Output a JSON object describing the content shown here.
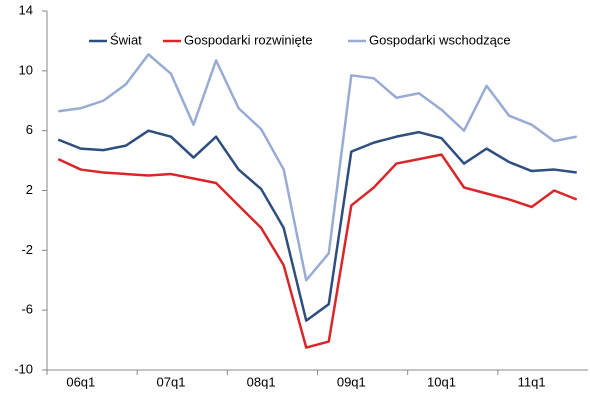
{
  "chart_data": {
    "type": "line",
    "categories": [
      "06q1",
      null,
      null,
      null,
      "07q1",
      null,
      null,
      null,
      "08q1",
      null,
      null,
      null,
      "09q1",
      null,
      null,
      null,
      "10q1",
      null,
      null,
      null,
      "11q1",
      null,
      null,
      null
    ],
    "series": [
      {
        "name": "Świat",
        "color": "#2e4e7e",
        "values": [
          5.4,
          4.8,
          4.7,
          5.0,
          6.0,
          5.6,
          4.2,
          5.6,
          3.4,
          2.1,
          -0.5,
          -6.7,
          -5.6,
          4.6,
          5.2,
          5.6,
          5.9,
          5.5,
          3.8,
          4.8,
          3.9,
          3.3,
          3.4,
          3.2
        ]
      },
      {
        "name": "Gospodarki rozwinięte",
        "color": "#d9262a",
        "values": [
          4.1,
          3.4,
          3.2,
          3.1,
          3.0,
          3.1,
          2.8,
          2.5,
          1.0,
          -0.5,
          -3.0,
          -8.5,
          -8.1,
          1.0,
          2.2,
          3.8,
          4.1,
          4.4,
          2.2,
          1.8,
          1.4,
          0.9,
          2.0,
          1.4
        ]
      },
      {
        "name": "Gospodarki wschodzące",
        "color": "#98acd3",
        "values": [
          7.3,
          7.5,
          8.0,
          9.1,
          11.1,
          9.8,
          6.4,
          10.7,
          7.5,
          6.1,
          3.4,
          -4.0,
          -2.2,
          9.7,
          9.5,
          8.2,
          8.5,
          7.4,
          6.0,
          9.0,
          7.0,
          6.4,
          5.3,
          5.6
        ]
      }
    ],
    "ylim": [
      -10,
      14
    ],
    "yticks": [
      -10,
      -6,
      -2,
      2,
      6,
      10,
      14
    ],
    "grid": false,
    "legend": "top"
  }
}
